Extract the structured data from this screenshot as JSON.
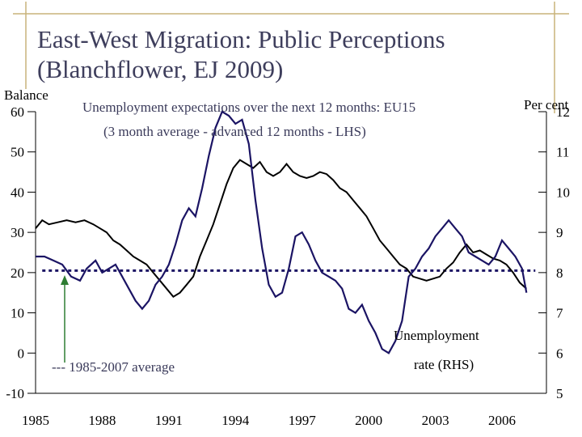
{
  "page": {
    "title_line1": "East-West Migration: Public Perceptions",
    "title_line2": "(Blanchflower, EJ 2009)"
  },
  "chart_data": {
    "type": "line",
    "left_axis_title": "Balance",
    "right_axis_title": "Per cent",
    "annotation_top_1": "Unemployment expectations over the next 12 months: EU15",
    "annotation_top_2": "(3 month average - advanced 12 months - LHS)",
    "annotation_unemp_1": "Unemployment",
    "annotation_unemp_2": "rate (RHS)",
    "annotation_average": "--- 1985-2007 average",
    "left_axis": {
      "min": -10,
      "max": 60,
      "ticks": [
        "-10",
        "0",
        "10",
        "20",
        "30",
        "40",
        "50",
        "60"
      ]
    },
    "right_axis": {
      "min": 5,
      "max": 12,
      "ticks": [
        "5",
        "6",
        "7",
        "8",
        "9",
        "10",
        "11",
        "12"
      ]
    },
    "x_axis": {
      "min": 1985,
      "max": 2008,
      "ticks": [
        "1985",
        "1988",
        "1991",
        "1994",
        "1997",
        "2000",
        "2003",
        "2006"
      ]
    },
    "average_line_rhs": 8.05,
    "colors": {
      "expectations": "#000000",
      "unemployment": "#1b1464",
      "average": "#1b1464",
      "arrow": "#2e7d32",
      "frame": "#c9b37a",
      "title": "#3e3e5c",
      "annotation": "#3a3a5a"
    },
    "series": [
      {
        "name": "Unemployment expectations (LHS)",
        "axis": "left",
        "x": [
          1985.0,
          1985.3,
          1985.6,
          1986.0,
          1986.4,
          1986.8,
          1987.2,
          1987.6,
          1987.9,
          1988.2,
          1988.5,
          1988.8,
          1989.1,
          1989.4,
          1989.7,
          1990.0,
          1990.3,
          1990.6,
          1990.9,
          1991.2,
          1991.5,
          1991.8,
          1992.1,
          1992.4,
          1992.7,
          1993.0,
          1993.3,
          1993.6,
          1993.9,
          1994.2,
          1994.5,
          1994.8,
          1995.1,
          1995.4,
          1995.7,
          1996.0,
          1996.3,
          1996.6,
          1996.9,
          1997.2,
          1997.5,
          1997.8,
          1998.1,
          1998.4,
          1998.7,
          1999.0,
          1999.3,
          1999.6,
          1999.9,
          2000.2,
          2000.5,
          2000.8,
          2001.1,
          2001.4,
          2001.7,
          2002.0,
          2002.3,
          2002.6,
          2002.9,
          2003.2,
          2003.5,
          2003.8,
          2004.1,
          2004.4,
          2004.7,
          2005.0,
          2005.3,
          2005.6,
          2005.9,
          2006.2,
          2006.5,
          2006.8,
          2007.1
        ],
        "values": [
          31,
          33,
          32,
          32.5,
          33,
          32.5,
          33,
          32,
          31,
          30,
          28,
          27,
          25.5,
          24,
          23,
          22,
          20,
          18,
          16,
          14,
          15,
          17,
          19,
          24,
          28,
          32,
          37,
          42,
          46,
          48,
          47,
          46,
          47.5,
          45,
          44,
          45,
          47,
          45,
          44,
          43.5,
          44,
          45,
          44.5,
          43,
          41,
          40,
          38,
          36,
          34,
          31,
          28,
          26,
          24,
          22,
          21,
          19,
          18.5,
          18,
          18.5,
          19,
          21,
          22.5,
          25,
          27,
          25,
          25.5,
          24.5,
          23.5,
          23,
          22,
          20,
          17.5,
          16
        ]
      },
      {
        "name": "Unemployment rate (RHS)",
        "axis": "right",
        "x": [
          1985.0,
          1985.4,
          1985.8,
          1986.2,
          1986.6,
          1987.0,
          1987.3,
          1987.7,
          1988.0,
          1988.3,
          1988.6,
          1988.9,
          1989.2,
          1989.5,
          1989.8,
          1990.1,
          1990.4,
          1990.7,
          1991.0,
          1991.3,
          1991.6,
          1991.9,
          1992.2,
          1992.5,
          1992.8,
          1993.1,
          1993.4,
          1993.7,
          1994.0,
          1994.3,
          1994.6,
          1994.9,
          1995.2,
          1995.5,
          1995.8,
          1996.1,
          1996.4,
          1996.7,
          1997.0,
          1997.3,
          1997.6,
          1997.9,
          1998.2,
          1998.5,
          1998.8,
          1999.1,
          1999.4,
          1999.7,
          2000.0,
          2000.3,
          2000.6,
          2000.9,
          2001.2,
          2001.5,
          2001.8,
          2002.1,
          2002.4,
          2002.7,
          2003.0,
          2003.3,
          2003.6,
          2003.9,
          2004.2,
          2004.5,
          2004.8,
          2005.1,
          2005.4,
          2005.7,
          2006.0,
          2006.3,
          2006.6,
          2006.9,
          2007.1
        ],
        "values": [
          8.4,
          8.4,
          8.3,
          8.2,
          7.9,
          7.8,
          8.1,
          8.3,
          8.0,
          8.1,
          8.2,
          7.9,
          7.6,
          7.3,
          7.1,
          7.3,
          7.7,
          7.9,
          8.2,
          8.7,
          9.3,
          9.6,
          9.4,
          10.1,
          10.9,
          11.6,
          12.0,
          11.9,
          11.7,
          11.8,
          11.2,
          9.8,
          8.6,
          7.7,
          7.4,
          7.5,
          8.1,
          8.9,
          9.0,
          8.7,
          8.3,
          8.0,
          7.9,
          7.8,
          7.6,
          7.1,
          7.0,
          7.2,
          6.8,
          6.5,
          6.1,
          6.0,
          6.3,
          6.8,
          7.9,
          8.1,
          8.4,
          8.6,
          8.9,
          9.1,
          9.3,
          9.1,
          8.9,
          8.5,
          8.4,
          8.3,
          8.2,
          8.4,
          8.8,
          8.6,
          8.4,
          8.1,
          7.5
        ]
      }
    ]
  }
}
